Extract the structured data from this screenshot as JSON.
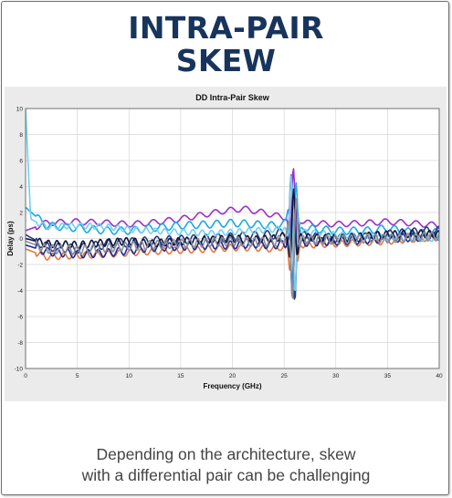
{
  "slide": {
    "title_line1": "INTRA-PAIR",
    "title_line2": "SKEW",
    "caption_line1": "Depending on the architecture, skew",
    "caption_line2": "with a differential pair can be challenging"
  },
  "chart_data": {
    "type": "line",
    "title": "DD Intra-Pair Skew",
    "xlabel": "Frequency (GHz)",
    "ylabel": "Delay (ps)",
    "xlim": [
      0,
      40
    ],
    "ylim": [
      -10,
      10
    ],
    "xticks": [
      0,
      5,
      10,
      15,
      20,
      25,
      30,
      35,
      40
    ],
    "yticks": [
      -10,
      -8,
      -6,
      -4,
      -2,
      0,
      2,
      4,
      6,
      8,
      10
    ],
    "grid": true,
    "legend": "none",
    "series": [
      {
        "color": "#9b30c8",
        "values": [
          [
            0,
            0.6
          ],
          [
            2,
            1.2
          ],
          [
            5,
            1.3
          ],
          [
            8,
            1.2
          ],
          [
            10,
            1.1
          ],
          [
            12,
            1.2
          ],
          [
            15,
            1.5
          ],
          [
            17,
            1.8
          ],
          [
            19,
            2.1
          ],
          [
            21,
            2.3
          ],
          [
            23,
            2.0
          ],
          [
            25,
            1.6
          ],
          [
            27,
            1.2
          ],
          [
            30,
            1.1
          ],
          [
            33,
            1.2
          ],
          [
            35,
            1.3
          ],
          [
            37,
            1.2
          ],
          [
            40,
            1.0
          ]
        ]
      },
      {
        "color": "#19a8e6",
        "values": [
          [
            0,
            2.4
          ],
          [
            2,
            1.0
          ],
          [
            5,
            0.8
          ],
          [
            8,
            0.6
          ],
          [
            10,
            0.6
          ],
          [
            12,
            0.8
          ],
          [
            15,
            1.0
          ],
          [
            18,
            1.1
          ],
          [
            20,
            1.2
          ],
          [
            22,
            1.1
          ],
          [
            24,
            1.0
          ],
          [
            25,
            1.2
          ],
          [
            27,
            0.8
          ],
          [
            30,
            0.6
          ],
          [
            33,
            0.6
          ],
          [
            35,
            0.8
          ],
          [
            38,
            0.4
          ],
          [
            40,
            0.5
          ]
        ]
      },
      {
        "color": "#2a3a7a",
        "values": [
          [
            0,
            0.3
          ],
          [
            2,
            -0.6
          ],
          [
            5,
            -0.8
          ],
          [
            8,
            -0.4
          ],
          [
            10,
            -0.3
          ],
          [
            12,
            -0.2
          ],
          [
            15,
            -0.1
          ],
          [
            18,
            0.0
          ],
          [
            20,
            0.1
          ],
          [
            22,
            0.2
          ],
          [
            24,
            0.3
          ],
          [
            25,
            0.5
          ],
          [
            27,
            0.2
          ],
          [
            30,
            0.0
          ],
          [
            33,
            0.1
          ],
          [
            35,
            0.3
          ],
          [
            38,
            0.5
          ],
          [
            40,
            0.6
          ]
        ]
      },
      {
        "color": "#e8773a",
        "values": [
          [
            0,
            -0.8
          ],
          [
            2,
            -1.4
          ],
          [
            5,
            -1.3
          ],
          [
            8,
            -1.2
          ],
          [
            10,
            -1.1
          ],
          [
            12,
            -1.0
          ],
          [
            15,
            -0.9
          ],
          [
            18,
            -0.8
          ],
          [
            20,
            -0.7
          ],
          [
            22,
            -0.7
          ],
          [
            24,
            -0.8
          ],
          [
            25,
            -0.6
          ],
          [
            27,
            -0.5
          ],
          [
            30,
            -0.4
          ],
          [
            33,
            -0.3
          ],
          [
            35,
            -0.2
          ],
          [
            38,
            0.0
          ],
          [
            40,
            0.1
          ]
        ]
      },
      {
        "color": "#1b2a9c",
        "values": [
          [
            0,
            -0.5
          ],
          [
            2,
            -1.0
          ],
          [
            5,
            -1.2
          ],
          [
            8,
            -1.1
          ],
          [
            10,
            -0.9
          ],
          [
            12,
            -0.7
          ],
          [
            15,
            -0.6
          ],
          [
            18,
            -0.5
          ],
          [
            20,
            -0.5
          ],
          [
            22,
            -0.4
          ],
          [
            24,
            -0.5
          ],
          [
            25,
            -0.4
          ],
          [
            27,
            -0.3
          ],
          [
            30,
            -0.2
          ],
          [
            33,
            -0.1
          ],
          [
            35,
            0.0
          ],
          [
            38,
            0.1
          ],
          [
            40,
            0.2
          ]
        ]
      },
      {
        "color": "#6fd0f5",
        "values": [
          [
            0,
            10.0
          ],
          [
            0.5,
            1.5
          ],
          [
            2,
            0.9
          ],
          [
            5,
            1.0
          ],
          [
            8,
            0.9
          ],
          [
            10,
            0.7
          ],
          [
            12,
            0.6
          ],
          [
            15,
            0.5
          ],
          [
            18,
            0.4
          ],
          [
            20,
            0.5
          ],
          [
            22,
            0.6
          ],
          [
            24,
            0.7
          ],
          [
            25,
            0.8
          ],
          [
            27,
            0.5
          ],
          [
            30,
            0.3
          ],
          [
            33,
            0.2
          ],
          [
            35,
            0.1
          ],
          [
            38,
            0.0
          ],
          [
            40,
            0.0
          ]
        ]
      },
      {
        "color": "#0b1440",
        "values": [
          [
            0,
            0.0
          ],
          [
            2,
            -0.4
          ],
          [
            5,
            -0.5
          ],
          [
            8,
            -0.3
          ],
          [
            10,
            -0.2
          ],
          [
            12,
            -0.4
          ],
          [
            15,
            -0.2
          ],
          [
            18,
            -0.1
          ],
          [
            20,
            0.0
          ],
          [
            22,
            -0.1
          ],
          [
            24,
            0.0
          ],
          [
            25,
            0.2
          ],
          [
            27,
            0.1
          ],
          [
            30,
            0.0
          ],
          [
            33,
            0.2
          ],
          [
            35,
            0.3
          ],
          [
            38,
            0.4
          ],
          [
            40,
            0.3
          ]
        ]
      },
      {
        "color": "#8a8f99",
        "values": [
          [
            0,
            -0.2
          ],
          [
            2,
            -0.8
          ],
          [
            5,
            -0.9
          ],
          [
            8,
            -0.7
          ],
          [
            10,
            -0.6
          ],
          [
            12,
            -0.5
          ],
          [
            15,
            -0.4
          ],
          [
            18,
            -0.3
          ],
          [
            20,
            -0.2
          ],
          [
            22,
            -0.3
          ],
          [
            24,
            -0.2
          ],
          [
            25,
            0.0
          ],
          [
            27,
            -0.1
          ],
          [
            30,
            -0.1
          ],
          [
            33,
            0.0
          ],
          [
            35,
            0.0
          ],
          [
            38,
            0.1
          ],
          [
            40,
            0.2
          ]
        ]
      }
    ]
  }
}
